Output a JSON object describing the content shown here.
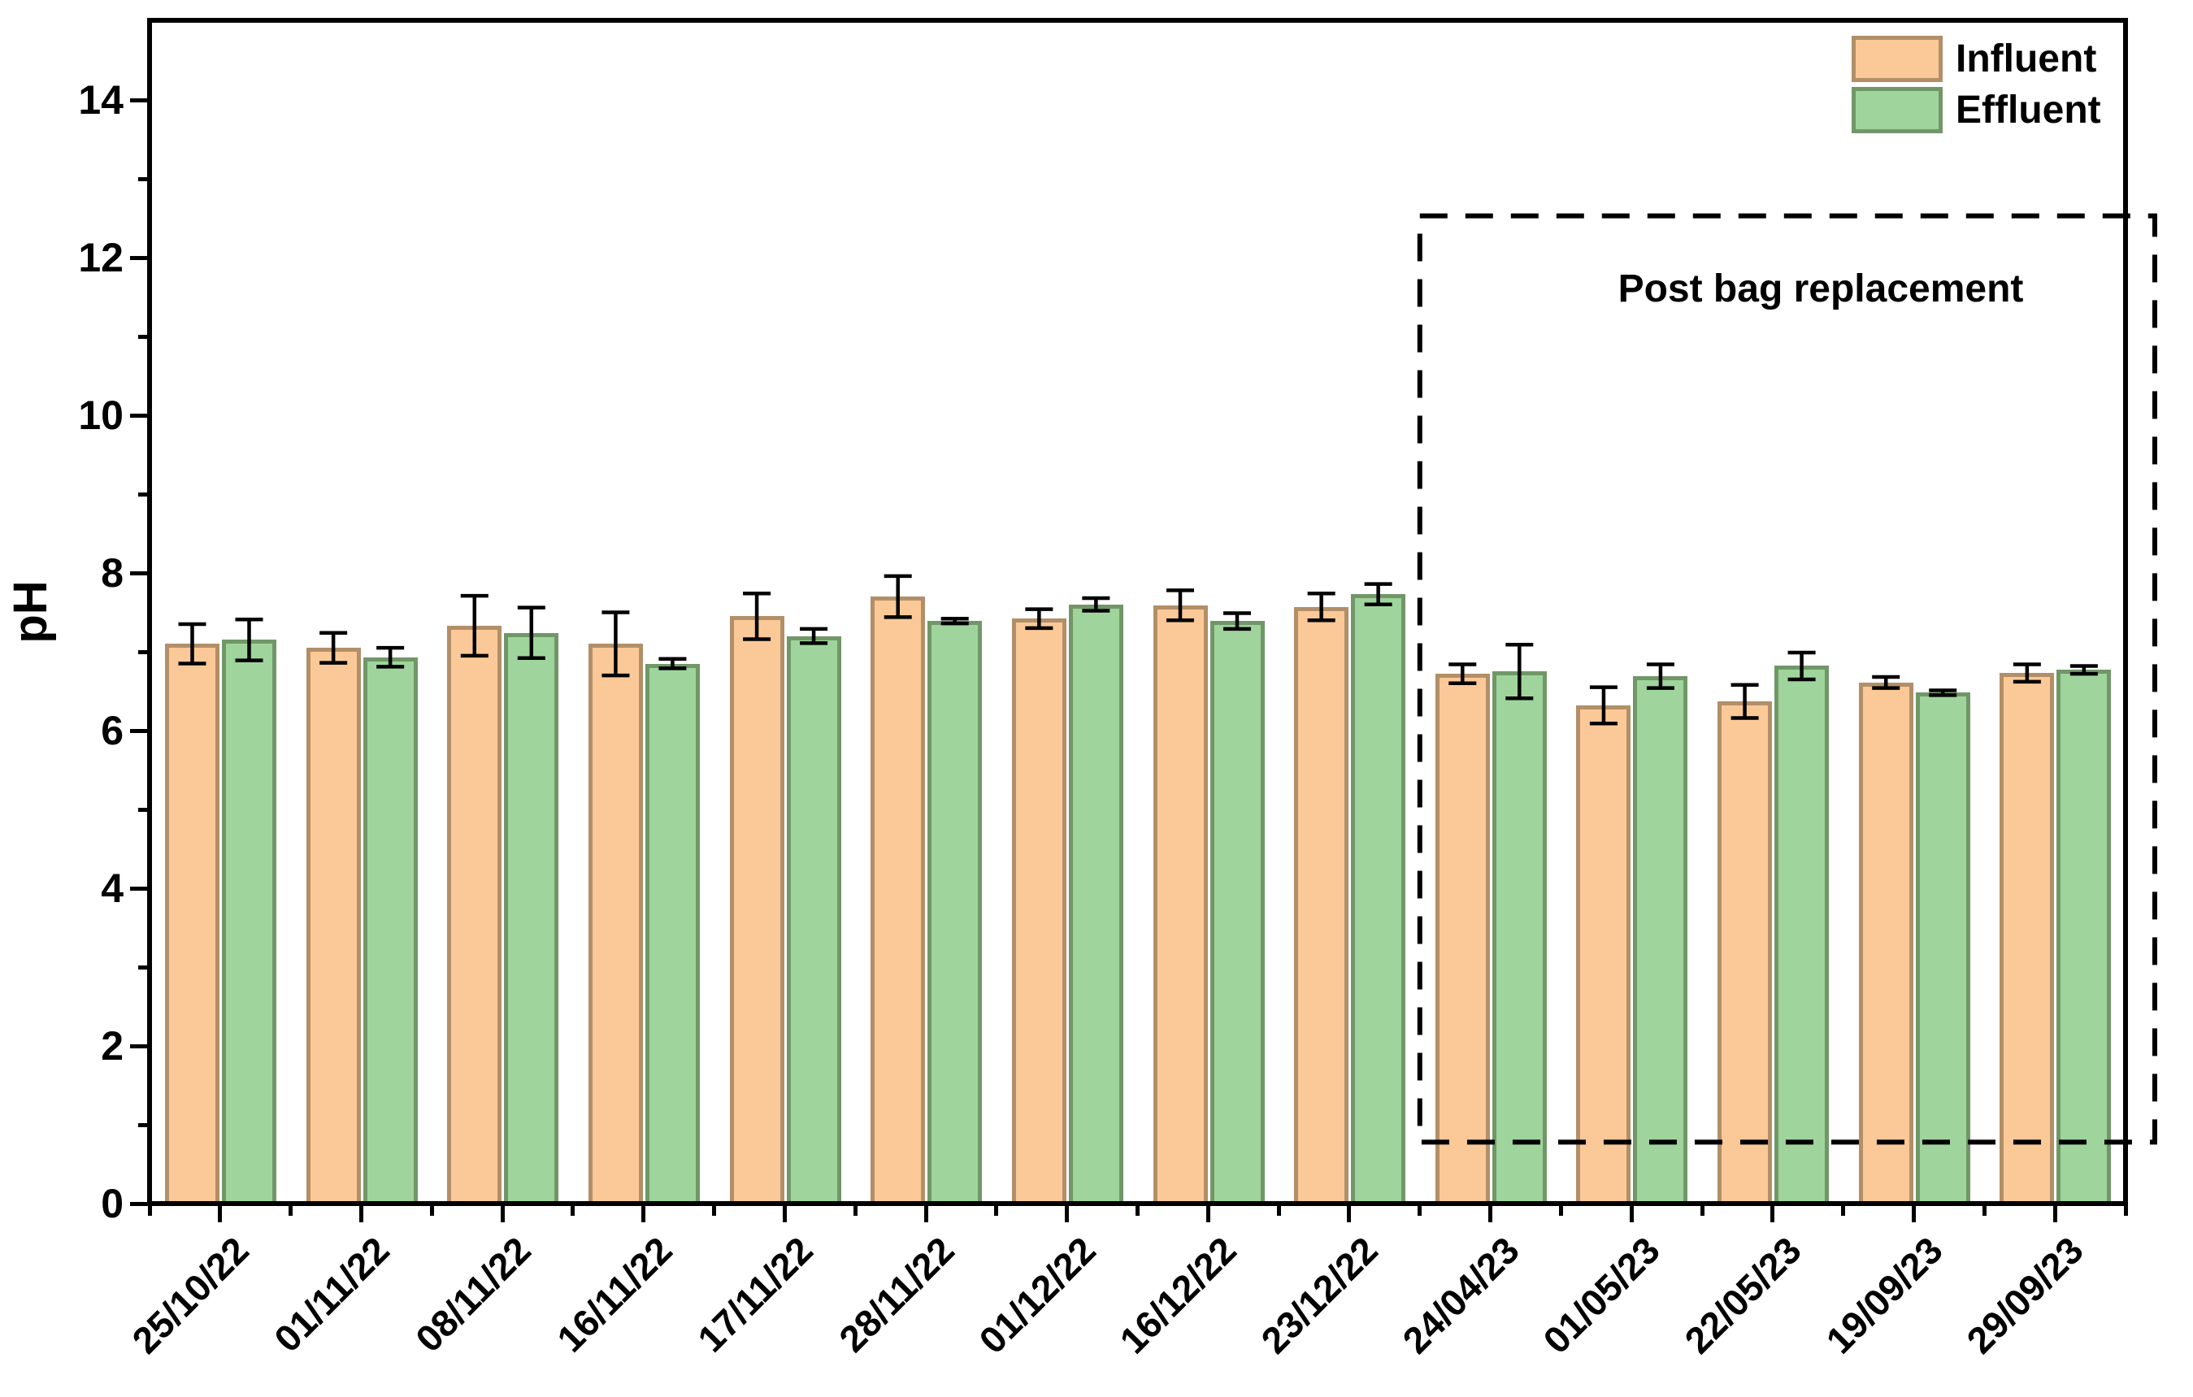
{
  "chart_data": {
    "type": "bar",
    "title": "",
    "ylabel": "pH",
    "ylim": [
      0,
      15
    ],
    "yticks_major": [
      0,
      2,
      4,
      6,
      8,
      10,
      12,
      14
    ],
    "yticks_minor": [
      1,
      3,
      5,
      7,
      9,
      11,
      13
    ],
    "grid": "off",
    "categories": [
      "25/10/22",
      "01/11/22",
      "08/11/22",
      "16/11/22",
      "17/11/22",
      "28/11/22",
      "01/12/22",
      "16/12/22",
      "23/12/22",
      "24/04/23",
      "01/05/23",
      "22/05/23",
      "19/09/23",
      "29/09/23"
    ],
    "series": [
      {
        "name": "Influent",
        "fill": "#FBC997",
        "edge": "#B28F68",
        "values": [
          7.1,
          7.05,
          7.33,
          7.1,
          7.45,
          7.7,
          7.42,
          7.59,
          7.57,
          6.72,
          6.32,
          6.37,
          6.61,
          6.73
        ],
        "errors": [
          0.25,
          0.19,
          0.38,
          0.4,
          0.29,
          0.26,
          0.12,
          0.19,
          0.17,
          0.12,
          0.23,
          0.21,
          0.07,
          0.11
        ]
      },
      {
        "name": "Effluent",
        "fill": "#9FD59C",
        "edge": "#719768",
        "values": [
          7.15,
          6.93,
          7.24,
          6.85,
          7.2,
          7.39,
          7.6,
          7.39,
          7.73,
          6.75,
          6.69,
          6.82,
          6.48,
          6.77
        ],
        "errors": [
          0.26,
          0.12,
          0.32,
          0.06,
          0.09,
          0.03,
          0.08,
          0.1,
          0.13,
          0.34,
          0.15,
          0.17,
          0.03,
          0.05
        ]
      }
    ],
    "legend": {
      "position": "top-right",
      "entries": [
        {
          "label": "Influent",
          "fill": "#FBC997",
          "edge": "#B28F68"
        },
        {
          "label": "Effluent",
          "fill": "#9FD59C",
          "edge": "#719768"
        }
      ]
    },
    "annotation": {
      "label": "Post bag replacement",
      "style": "dashed-box",
      "box_color": "#000000",
      "spans_categories": [
        "24/04/23",
        "29/09/23"
      ],
      "y_min": 0.78,
      "y_max": 12.53
    }
  }
}
